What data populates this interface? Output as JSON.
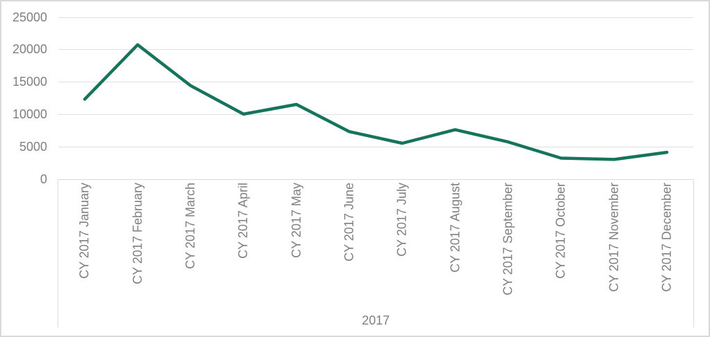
{
  "chart_data": {
    "type": "line",
    "title": "",
    "categories": [
      "CY 2017 January",
      "CY 2017 February",
      "CY 2017 March",
      "CY 2017 April",
      "CY 2017 May",
      "CY 2017 June",
      "CY 2017 July",
      "CY 2017 August",
      "CY 2017 September",
      "CY 2017 October",
      "CY 2017 November",
      "CY 2017 December"
    ],
    "series": [
      {
        "name": "",
        "values": [
          12300,
          20700,
          14400,
          10000,
          11500,
          7300,
          5500,
          7600,
          5700,
          3200,
          3000,
          4100
        ]
      }
    ],
    "xlabel": "2017",
    "ylabel": "",
    "ylim": [
      0,
      25000
    ],
    "yticks": [
      0,
      5000,
      10000,
      15000,
      20000,
      25000
    ],
    "ytick_labels": [
      "0",
      "5000",
      "10000",
      "15000",
      "20000",
      "25000"
    ],
    "grid": "horizontal",
    "legend": "none",
    "colors": {
      "line": "#16735C",
      "labels": "#7F7F7F",
      "gridlines": "#E0E0E0",
      "axis_box": "#D9D9D9"
    }
  }
}
